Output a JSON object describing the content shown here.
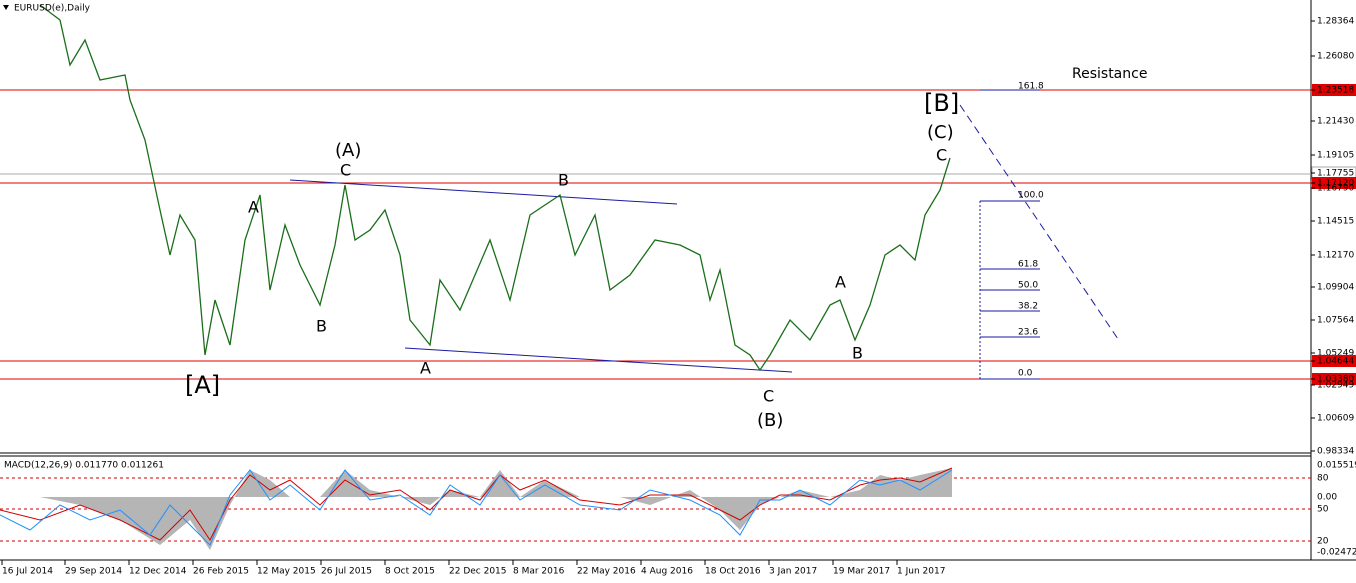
{
  "header": {
    "title": "EURUSD(e),Daily"
  },
  "price_axis": [
    "1.28364",
    "1.26080",
    "1.23518",
    "1.21430",
    "1.19105",
    "1.17755",
    "1.17120",
    "1.16790",
    "1.14515",
    "1.12170",
    "1.09904",
    "1.07564",
    "1.05249",
    "1.04644",
    "1.03380",
    "1.02949",
    "1.00609",
    "0.98334"
  ],
  "time_axis": [
    "16 Jul 2014",
    "29 Sep 2014",
    "12 Dec 2014",
    "26 Feb 2015",
    "12 May 2015",
    "26 Jul 2015",
    "8 Oct 2015",
    "22 Dec 2015",
    "8 Mar 2016",
    "22 May 2016",
    "4 Aug 2016",
    "18 Oct 2016",
    "3 Jan 2017",
    "19 Mar 2017",
    "1 Jun 2017"
  ],
  "annotations": [
    "Resistance",
    "[B]",
    "(C)",
    "C",
    "(A)",
    "C",
    "A",
    "B",
    "B",
    "A",
    "[A]",
    "C",
    "(B)",
    "A",
    "B"
  ],
  "fibonacci": [
    "161.8",
    "100.0",
    "61.8",
    "50.0",
    "38.2",
    "23.6",
    "0.0"
  ],
  "macd": {
    "label": "MACD(12,26,9) 0.011770 0.011261",
    "axis": [
      "0.015519",
      "80",
      "0.00",
      "50",
      "20",
      "-0.024724"
    ]
  }
}
